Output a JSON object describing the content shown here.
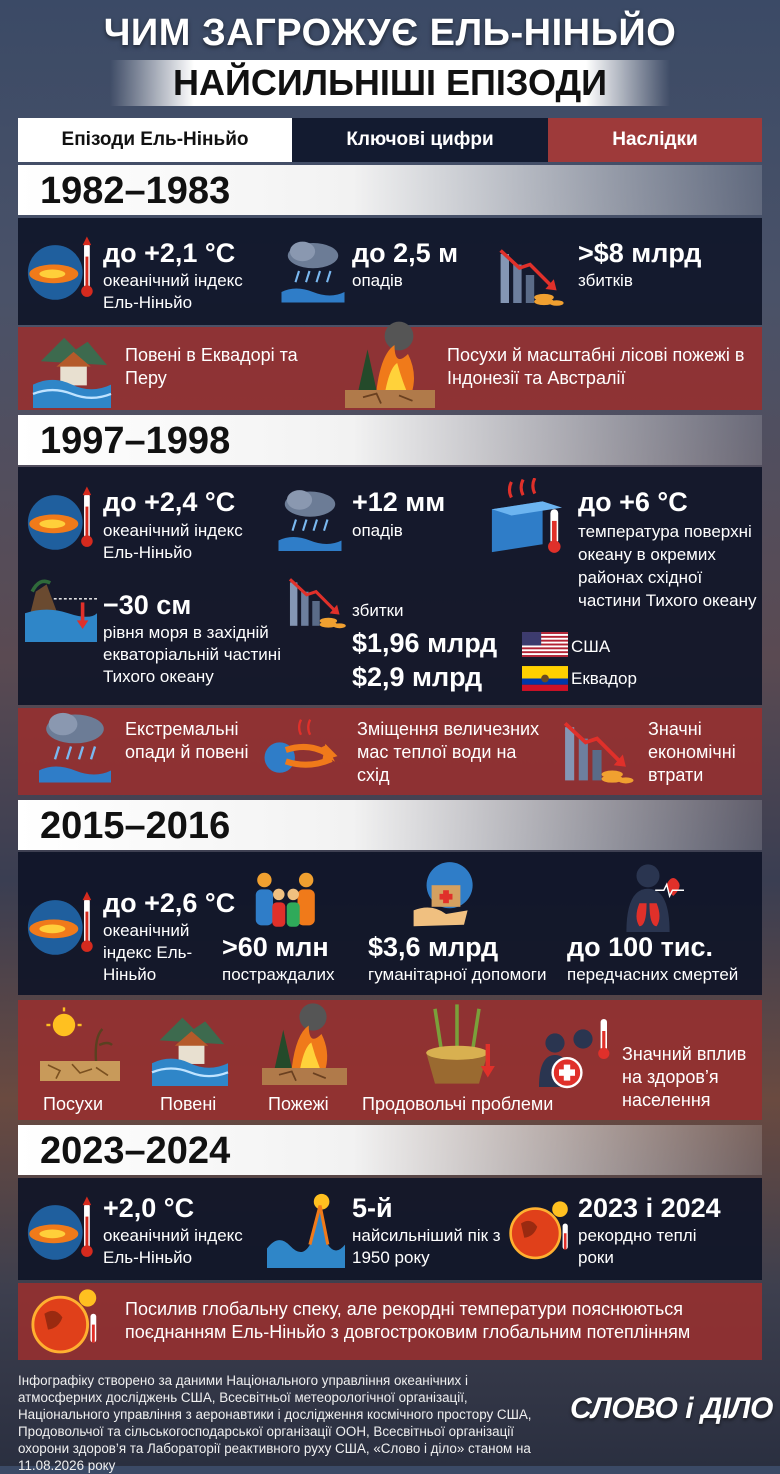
{
  "header": {
    "title": "ЧИМ ЗАГРОЖУЄ ЕЛЬ-НІНЬЙО",
    "subtitle": "НАЙСИЛЬНІШІ ЕПІЗОДИ"
  },
  "tabs": [
    "Епізоди Ель-Ніньйо",
    "Ключові цифри",
    "Наслідки"
  ],
  "episodes": [
    {
      "years": "1982–1983",
      "figures": [
        {
          "value": "до +2,1 °C",
          "label": "океанічний індекс Ель-Ніньйо"
        },
        {
          "value": "до 2,5 м",
          "label": "опадів"
        },
        {
          "value": ">$8 млрд",
          "label": "збитків"
        }
      ],
      "effects": [
        "Повені в Еквадорі та Перу",
        "Посухи й масштабні лісові пожежі в Індонезії та Австралії"
      ]
    },
    {
      "years": "1997–1998",
      "figures": [
        {
          "value": "до +2,4 °C",
          "label": "океанічний індекс Ель-Ніньйо"
        },
        {
          "value": "+12 мм",
          "label": "опадів"
        },
        {
          "value": "до +6 °C",
          "label": "температура поверхні океану в окремих районах східної частини Тихого океану"
        },
        {
          "value": "−30 см",
          "label": "рівня моря в західній екваторіальній частині Тихого океану"
        }
      ],
      "damages": {
        "label": "збитки",
        "items": [
          {
            "value": "$1,96 млрд",
            "country": "США"
          },
          {
            "value": "$2,9 млрд",
            "country": "Еквадор"
          }
        ]
      },
      "effects": [
        "Екстремальні опади й повені",
        "Зміщення величезних мас теплої води на схід",
        "Значні економічні втрати"
      ]
    },
    {
      "years": "2015–2016",
      "figures": [
        {
          "value": "до +2,6 °C",
          "label": "океанічний індекс Ель-Ніньйо"
        },
        {
          "value": ">60 млн",
          "label": "постраждалих"
        },
        {
          "value": "$3,6 млрд",
          "label": "гуманітарної допомоги"
        },
        {
          "value": "до 100 тис.",
          "label": "передчасних смертей"
        }
      ],
      "effects": [
        "Посухи",
        "Повені",
        "Пожежі",
        "Продовольчі проблеми",
        "Значний вплив на здоров’я населення"
      ]
    },
    {
      "years": "2023–2024",
      "figures": [
        {
          "value": "+2,0 °C",
          "label": "океанічний індекс Ель-Ніньйо"
        },
        {
          "value": "5-й",
          "label": "найсильніший пік з 1950 року"
        },
        {
          "value": "2023 і 2024",
          "label": "рекордно теплі роки"
        }
      ],
      "effects": [
        "Посилив глобальну спеку, але рекордні температури пояснюються поєднанням Ель-Ніньйо з довгостроковим глобальним потеплінням"
      ]
    }
  ],
  "footer": {
    "source": "Інфографіку створено за даними Національного управління океанічних і атмосферних досліджень США, Всесвітньої метеорологічної організації, Національного управління з аеронавтики і дослідження космічного простору США, Продовольчої та сільськогосподарської організації ООН, Всесвітньої організації охорони здоров’я та Лабораторії реактивного руху США, «Слово і діло» станом на 11.08.2026 року",
    "logo": "СЛОВО і ДІЛО"
  }
}
